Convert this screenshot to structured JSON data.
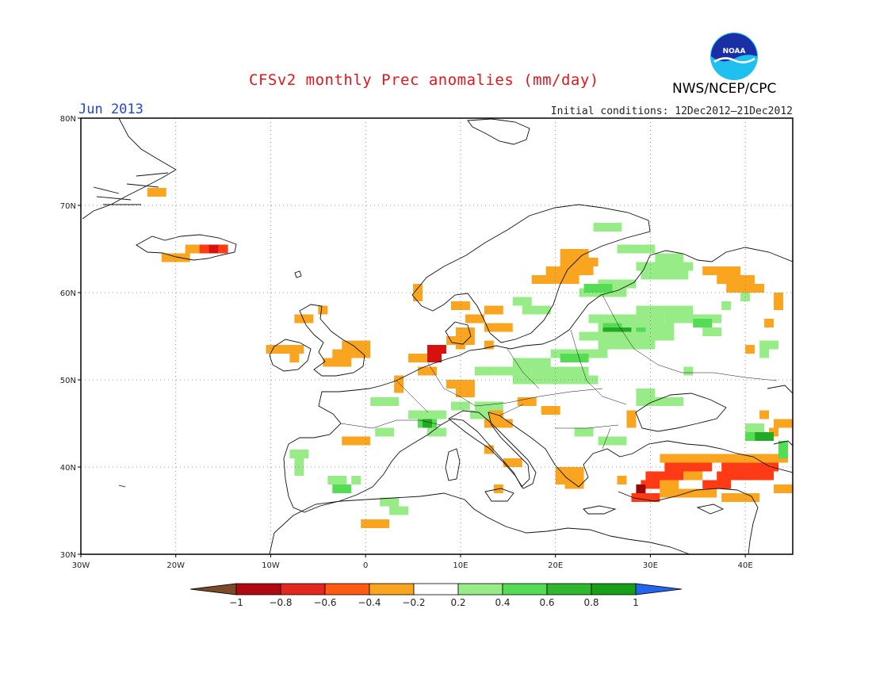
{
  "header": {
    "title": "CFSv2 monthly Prec anomalies (mm/day)",
    "month": "Jun 2013",
    "initial_conditions": "Initial conditions: 12Dec2012–21Dec2012",
    "agency": "NWS/NCEP/CPC",
    "logo_text": "NOAA",
    "logo_icon": "noaa-logo-icon"
  },
  "map": {
    "lon_range": [
      -30,
      45
    ],
    "lat_range": [
      30,
      80
    ],
    "lon_ticks": [
      {
        "v": -30,
        "label": "30W"
      },
      {
        "v": -20,
        "label": "20W"
      },
      {
        "v": -10,
        "label": "10W"
      },
      {
        "v": 0,
        "label": "0"
      },
      {
        "v": 10,
        "label": "10E"
      },
      {
        "v": 20,
        "label": "20E"
      },
      {
        "v": 30,
        "label": "30E"
      },
      {
        "v": 40,
        "label": "40E"
      }
    ],
    "lat_ticks": [
      {
        "v": 30,
        "label": "30N"
      },
      {
        "v": 40,
        "label": "40N"
      },
      {
        "v": 50,
        "label": "50N"
      },
      {
        "v": 60,
        "label": "60N"
      },
      {
        "v": 70,
        "label": "70N"
      },
      {
        "v": 80,
        "label": "80N"
      }
    ],
    "grid": true
  },
  "colorbar": {
    "labels": [
      "−1",
      "−0.8",
      "−0.6",
      "−0.4",
      "−0.2",
      "0.2",
      "0.4",
      "0.6",
      "0.8",
      "1"
    ],
    "colors": [
      "#7b4a2a",
      "#b0090f",
      "#e2271f",
      "#ff5a14",
      "#f9a520",
      "#ffffff",
      "#98ec88",
      "#54dc54",
      "#2fb82f",
      "#17a017",
      "#2266ee"
    ]
  },
  "anomaly_colors": {
    "o": "#f9a520",
    "r": "#ff3a14",
    "R": "#d8100e",
    "D": "#9a0808",
    "g": "#98ec88",
    "G": "#54dc54",
    "K": "#23a923"
  },
  "anomaly_cells": [
    [
      "o",
      -22.5,
      71.5,
      2,
      1
    ],
    [
      "o",
      -21,
      64,
      3,
      1
    ],
    [
      "o",
      -18.5,
      65,
      2,
      1
    ],
    [
      "r",
      -17,
      65,
      2,
      1
    ],
    [
      "R",
      -16,
      65,
      1,
      1
    ],
    [
      "r",
      -15,
      65,
      1,
      1
    ],
    [
      "o",
      -4.5,
      58,
      1,
      1
    ],
    [
      "o",
      -7,
      57,
      2,
      1
    ],
    [
      "o",
      -10,
      53.5,
      4,
      1
    ],
    [
      "o",
      -7.5,
      52.5,
      1,
      1
    ],
    [
      "o",
      -2,
      54,
      3,
      1
    ],
    [
      "o",
      -3,
      53,
      4,
      1
    ],
    [
      "o",
      -4,
      52,
      3,
      1
    ],
    [
      "o",
      5.5,
      60.5,
      1,
      1
    ],
    [
      "o",
      5.5,
      59.5,
      1,
      1
    ],
    [
      "o",
      9.5,
      58.5,
      2,
      1
    ],
    [
      "o",
      11,
      57,
      2,
      1
    ],
    [
      "o",
      13,
      58,
      2,
      1
    ],
    [
      "o",
      13,
      56,
      3,
      1
    ],
    [
      "o",
      10,
      55.5,
      2,
      1
    ],
    [
      "o",
      9,
      54.5,
      3,
      1
    ],
    [
      "R",
      7,
      53.5,
      2,
      1
    ],
    [
      "R",
      6.5,
      52.5,
      2,
      1
    ],
    [
      "o",
      5,
      52.5,
      2,
      1
    ],
    [
      "o",
      10,
      54,
      1,
      1
    ],
    [
      "o",
      13,
      54,
      1,
      1
    ],
    [
      "o",
      6,
      51,
      2,
      1
    ],
    [
      "o",
      3.5,
      50,
      1,
      2
    ],
    [
      "o",
      9,
      49.5,
      3,
      1
    ],
    [
      "o",
      10,
      48.5,
      2,
      1
    ],
    [
      "o",
      18,
      61.5,
      5,
      1
    ],
    [
      "o",
      19.5,
      62.5,
      5,
      1
    ],
    [
      "o",
      21,
      63.5,
      4,
      1
    ],
    [
      "o",
      21,
      64.5,
      3,
      1
    ],
    [
      "o",
      36,
      62.5,
      4,
      1
    ],
    [
      "o",
      37.5,
      61.5,
      4,
      1
    ],
    [
      "o",
      38.5,
      60.5,
      4,
      1
    ],
    [
      "o",
      43.5,
      59.5,
      1,
      2
    ],
    [
      "o",
      42.5,
      56.5,
      1,
      1
    ],
    [
      "o",
      40.5,
      53.5,
      1,
      1
    ],
    [
      "o",
      16.5,
      47.5,
      2,
      1
    ],
    [
      "o",
      19,
      46.5,
      2,
      1
    ],
    [
      "o",
      13,
      46,
      2,
      2
    ],
    [
      "o",
      14,
      45,
      2,
      1
    ],
    [
      "o",
      28,
      46,
      1,
      2
    ],
    [
      "o",
      -2,
      43,
      3,
      1
    ],
    [
      "o",
      13,
      42,
      1,
      1
    ],
    [
      "o",
      15,
      40.5,
      2,
      1
    ],
    [
      "o",
      20.5,
      39.5,
      3,
      2
    ],
    [
      "o",
      21.5,
      38,
      2,
      1
    ],
    [
      "o",
      27,
      38.5,
      1,
      1
    ],
    [
      "o",
      0,
      33.5,
      3,
      1
    ],
    [
      "o",
      14,
      37.5,
      1,
      1
    ],
    [
      "o",
      43,
      44,
      1,
      1
    ],
    [
      "o",
      43.5,
      45,
      2,
      1
    ],
    [
      "o",
      42,
      46,
      1,
      1
    ],
    [
      "o",
      31.5,
      41,
      6,
      1
    ],
    [
      "o",
      37,
      41,
      8,
      1
    ],
    [
      "o",
      43.5,
      37.5,
      2,
      1
    ],
    [
      "o",
      38,
      36.5,
      4,
      1
    ],
    [
      "r",
      32,
      40,
      5,
      1
    ],
    [
      "r",
      38,
      40,
      6,
      1
    ],
    [
      "r",
      30,
      39,
      4,
      1
    ],
    [
      "o",
      34,
      39,
      2,
      1
    ],
    [
      "r",
      37.5,
      39,
      6,
      1
    ],
    [
      "r",
      29.5,
      38,
      2,
      1
    ],
    [
      "o",
      31.5,
      38,
      2,
      1
    ],
    [
      "r",
      36,
      38,
      3,
      1
    ],
    [
      "D",
      29,
      37.5,
      1,
      1
    ],
    [
      "r",
      28.5,
      36.5,
      3,
      1
    ],
    [
      "o",
      31.5,
      37,
      6,
      1
    ],
    [
      "g",
      31,
      64,
      3,
      1
    ],
    [
      "g",
      29,
      63,
      6,
      1
    ],
    [
      "g",
      29.5,
      62,
      5,
      1
    ],
    [
      "g",
      25,
      61,
      4,
      1
    ],
    [
      "g",
      23,
      60,
      5,
      1
    ],
    [
      "G",
      23.5,
      60.5,
      3,
      1
    ],
    [
      "g",
      24.5,
      67.5,
      3,
      1
    ],
    [
      "g",
      27,
      65,
      4,
      1
    ],
    [
      "g",
      16,
      59,
      2,
      1
    ],
    [
      "g",
      17,
      58,
      3,
      1
    ],
    [
      "g",
      29,
      58,
      6,
      1
    ],
    [
      "g",
      32,
      57,
      6,
      1
    ],
    [
      "g",
      24,
      57,
      8,
      1
    ],
    [
      "g",
      25,
      56,
      8,
      1
    ],
    [
      "G",
      25.5,
      56,
      2,
      1
    ],
    [
      "K",
      25.5,
      55.5,
      3,
      1
    ],
    [
      "G",
      29,
      55.5,
      2,
      1
    ],
    [
      "g",
      30,
      56,
      3,
      1
    ],
    [
      "G",
      35,
      56.5,
      2,
      1
    ],
    [
      "g",
      36,
      55.5,
      2,
      1
    ],
    [
      "g",
      23,
      55,
      10,
      1
    ],
    [
      "g",
      25,
      54,
      6,
      1
    ],
    [
      "g",
      20,
      53,
      6,
      1
    ],
    [
      "G",
      21,
      52.5,
      3,
      1
    ],
    [
      "g",
      16,
      52,
      4,
      1
    ],
    [
      "g",
      14,
      51,
      4,
      1
    ],
    [
      "g",
      12,
      51,
      2,
      1
    ],
    [
      "g",
      18,
      51,
      6,
      1
    ],
    [
      "g",
      16,
      50,
      6,
      1
    ],
    [
      "g",
      22,
      50,
      3,
      1
    ],
    [
      "g",
      34,
      51,
      1,
      1
    ],
    [
      "g",
      29,
      48.5,
      2,
      2
    ],
    [
      "g",
      31,
      47.5,
      3,
      1
    ],
    [
      "g",
      1,
      47.5,
      3,
      1
    ],
    [
      "g",
      9.5,
      47,
      2,
      1
    ],
    [
      "g",
      5,
      46,
      4,
      1
    ],
    [
      "G",
      6,
      45,
      2,
      1
    ],
    [
      "K",
      6.5,
      45,
      1,
      1
    ],
    [
      "g",
      7,
      44,
      2,
      1
    ],
    [
      "g",
      12,
      47,
      3,
      1
    ],
    [
      "g",
      11.5,
      46,
      2,
      1
    ],
    [
      "g",
      1.5,
      44,
      2,
      1
    ],
    [
      "g",
      22.5,
      44,
      2,
      1
    ],
    [
      "g",
      25,
      43,
      3,
      1
    ],
    [
      "g",
      -7.5,
      41.5,
      2,
      1
    ],
    [
      "g",
      -7,
      40.5,
      1,
      1
    ],
    [
      "g",
      -7,
      39.5,
      1,
      1
    ],
    [
      "g",
      -3.5,
      38.5,
      2,
      1
    ],
    [
      "G",
      -3,
      37.5,
      2,
      1
    ],
    [
      "g",
      -1,
      38.5,
      1,
      1
    ],
    [
      "g",
      2,
      36,
      2,
      1
    ],
    [
      "g",
      3,
      35,
      2,
      1
    ],
    [
      "g",
      38,
      58.5,
      1,
      1
    ],
    [
      "g",
      40,
      59.5,
      1,
      1
    ],
    [
      "g",
      42,
      54,
      2,
      1
    ],
    [
      "g",
      42,
      53,
      1,
      1
    ],
    [
      "g",
      40.5,
      44.5,
      2,
      1
    ],
    [
      "K",
      41.5,
      43.5,
      2,
      1
    ],
    [
      "G",
      40.5,
      43.5,
      1,
      1
    ],
    [
      "G",
      44,
      42.5,
      1,
      2
    ]
  ]
}
